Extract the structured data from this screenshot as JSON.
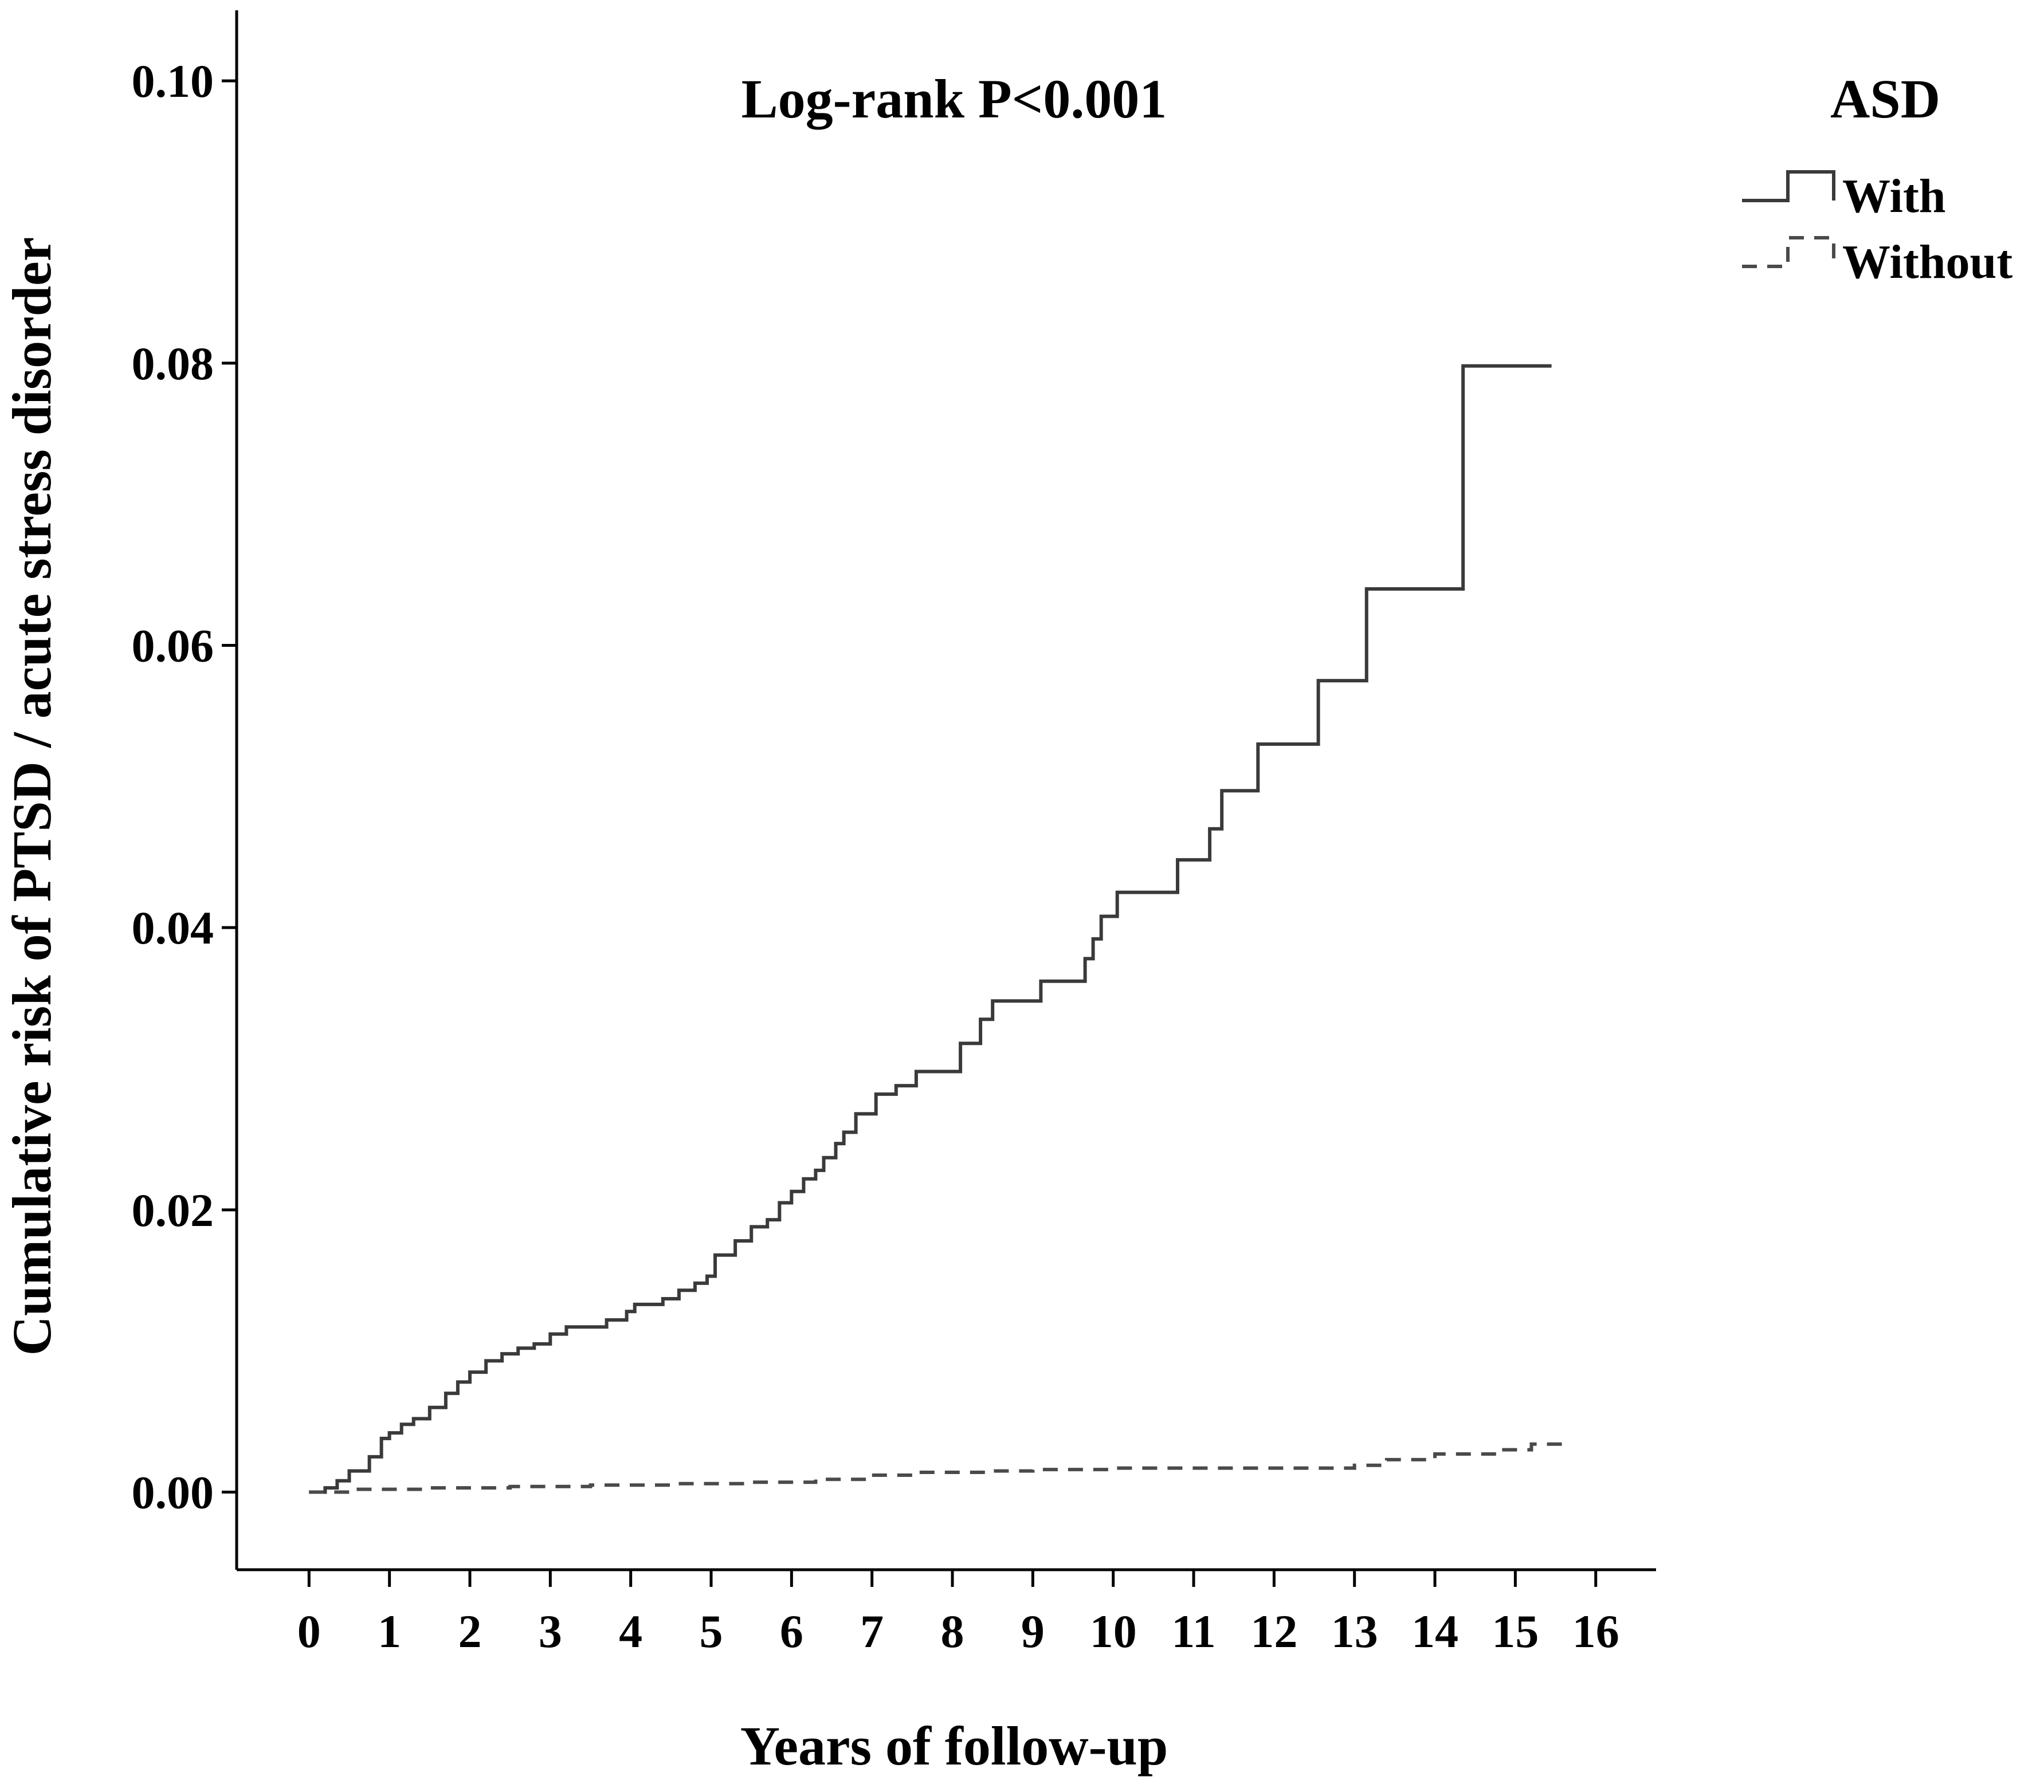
{
  "chart_data": {
    "type": "line",
    "subtype": "kaplan-meier cumulative risk step plot",
    "title": "",
    "annotation": "Log-rank P<0.001",
    "xlabel": "Years of follow-up",
    "ylabel": "Cumulative risk of PTSD / acute stress disorder",
    "xlim": [
      -0.9,
      16.75
    ],
    "ylim": [
      -0.0055,
      0.105
    ],
    "xticks": [
      0,
      1,
      2,
      3,
      4,
      5,
      6,
      7,
      8,
      9,
      10,
      11,
      12,
      13,
      14,
      15,
      16
    ],
    "xtick_labels": [
      "0",
      "1",
      "2",
      "3",
      "4",
      "5",
      "6",
      "7",
      "8",
      "9",
      "10",
      "11",
      "12",
      "13",
      "14",
      "15",
      "16"
    ],
    "yticks": [
      0.0,
      0.02,
      0.04,
      0.06,
      0.08,
      0.1
    ],
    "ytick_labels": [
      "0.00",
      "0.02",
      "0.04",
      "0.06",
      "0.08",
      "0.10"
    ],
    "grid": false,
    "legend": {
      "title": "ASD",
      "position": "top-right",
      "entries": [
        "With",
        "Without"
      ]
    },
    "series": [
      {
        "name": "With",
        "line_style": "solid",
        "color": "#3a3a3a",
        "step": true,
        "x": [
          0.0,
          0.2,
          0.35,
          0.5,
          0.75,
          0.9,
          1.0,
          1.15,
          1.3,
          1.5,
          1.7,
          1.85,
          2.0,
          2.2,
          2.4,
          2.6,
          2.8,
          3.0,
          3.2,
          3.35,
          3.7,
          3.95,
          4.05,
          4.4,
          4.6,
          4.8,
          4.95,
          5.05,
          5.3,
          5.5,
          5.7,
          5.85,
          6.0,
          6.15,
          6.3,
          6.4,
          6.55,
          6.65,
          6.8,
          7.05,
          7.3,
          7.55,
          8.1,
          8.35,
          8.5,
          8.6,
          9.1,
          9.65,
          9.75,
          9.85,
          10.05,
          10.2,
          10.8,
          11.2,
          11.35,
          11.8,
          12.55,
          13.15,
          14.35,
          15.45
        ],
        "y": [
          0.0,
          0.0003,
          0.0008,
          0.0015,
          0.0025,
          0.0038,
          0.0042,
          0.0048,
          0.0052,
          0.006,
          0.007,
          0.0078,
          0.0085,
          0.0093,
          0.0098,
          0.0102,
          0.0105,
          0.0112,
          0.0117,
          0.0117,
          0.0122,
          0.0128,
          0.0133,
          0.0137,
          0.0143,
          0.0148,
          0.0153,
          0.0168,
          0.0178,
          0.0188,
          0.0193,
          0.0205,
          0.0213,
          0.0222,
          0.0228,
          0.0237,
          0.0247,
          0.0255,
          0.0268,
          0.0282,
          0.0288,
          0.0298,
          0.0318,
          0.0335,
          0.0348,
          0.0348,
          0.0362,
          0.0378,
          0.0392,
          0.0408,
          0.0425,
          0.0425,
          0.0448,
          0.047,
          0.0497,
          0.053,
          0.0575,
          0.064,
          0.0798,
          0.0798
        ]
      },
      {
        "name": "Without",
        "line_style": "dashed",
        "color": "#4a4a4a",
        "step": true,
        "x": [
          0.0,
          0.5,
          1.5,
          2.5,
          3.5,
          4.5,
          5.5,
          6.3,
          7.0,
          7.5,
          8.5,
          9.0,
          10.0,
          11.5,
          13.0,
          13.4,
          14.0,
          14.8,
          15.2,
          15.65
        ],
        "y": [
          0.0,
          0.0002,
          0.0003,
          0.0004,
          0.0005,
          0.0006,
          0.0007,
          0.0009,
          0.0012,
          0.0014,
          0.0015,
          0.0016,
          0.0017,
          0.0017,
          0.0019,
          0.0023,
          0.0027,
          0.003,
          0.0034,
          0.0034
        ]
      }
    ]
  }
}
